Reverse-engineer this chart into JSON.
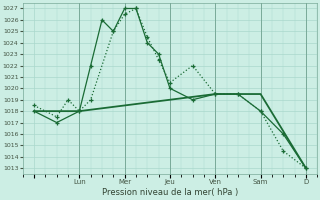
{
  "xlabel": "Pression niveau de la mer( hPa )",
  "bg_color": "#cceee4",
  "grid_color": "#aad8cc",
  "line_color": "#1a6b35",
  "ylim": [
    1012.5,
    1027.5
  ],
  "yticks": [
    1013,
    1014,
    1015,
    1016,
    1017,
    1018,
    1019,
    1020,
    1021,
    1022,
    1023,
    1024,
    1025,
    1026,
    1027
  ],
  "day_labels": [
    "",
    "Lun",
    "Mer",
    "Jeu",
    "Ven",
    "Sam",
    "D"
  ],
  "day_positions": [
    0,
    24,
    48,
    72,
    96,
    120,
    144
  ],
  "xlim": [
    -6,
    150
  ],
  "line1_solid": {
    "x": [
      0,
      12,
      24,
      30,
      36,
      42,
      48,
      54,
      60,
      66,
      72,
      84,
      96,
      108,
      120,
      132,
      144
    ],
    "y": [
      1018.0,
      1017.0,
      1018.0,
      1022.0,
      1026.0,
      1025.0,
      1027.0,
      1027.0,
      1024.0,
      1023.0,
      1020.0,
      1019.0,
      1019.5,
      1019.5,
      1018.0,
      1016.0,
      1013.0
    ]
  },
  "line2_dotted": {
    "x": [
      0,
      12,
      18,
      24,
      30,
      42,
      48,
      54,
      60,
      66,
      72,
      84,
      96,
      108,
      120,
      132,
      144
    ],
    "y": [
      1018.5,
      1017.5,
      1019.0,
      1018.0,
      1019.0,
      1025.0,
      1026.5,
      1027.0,
      1024.5,
      1022.5,
      1020.5,
      1022.0,
      1019.5,
      1019.5,
      1018.0,
      1014.5,
      1013.0
    ]
  },
  "line3_smooth": {
    "x": [
      0,
      24,
      48,
      72,
      96,
      120,
      144
    ],
    "y": [
      1018.0,
      1018.0,
      1018.5,
      1019.0,
      1019.5,
      1019.5,
      1013.0
    ]
  }
}
